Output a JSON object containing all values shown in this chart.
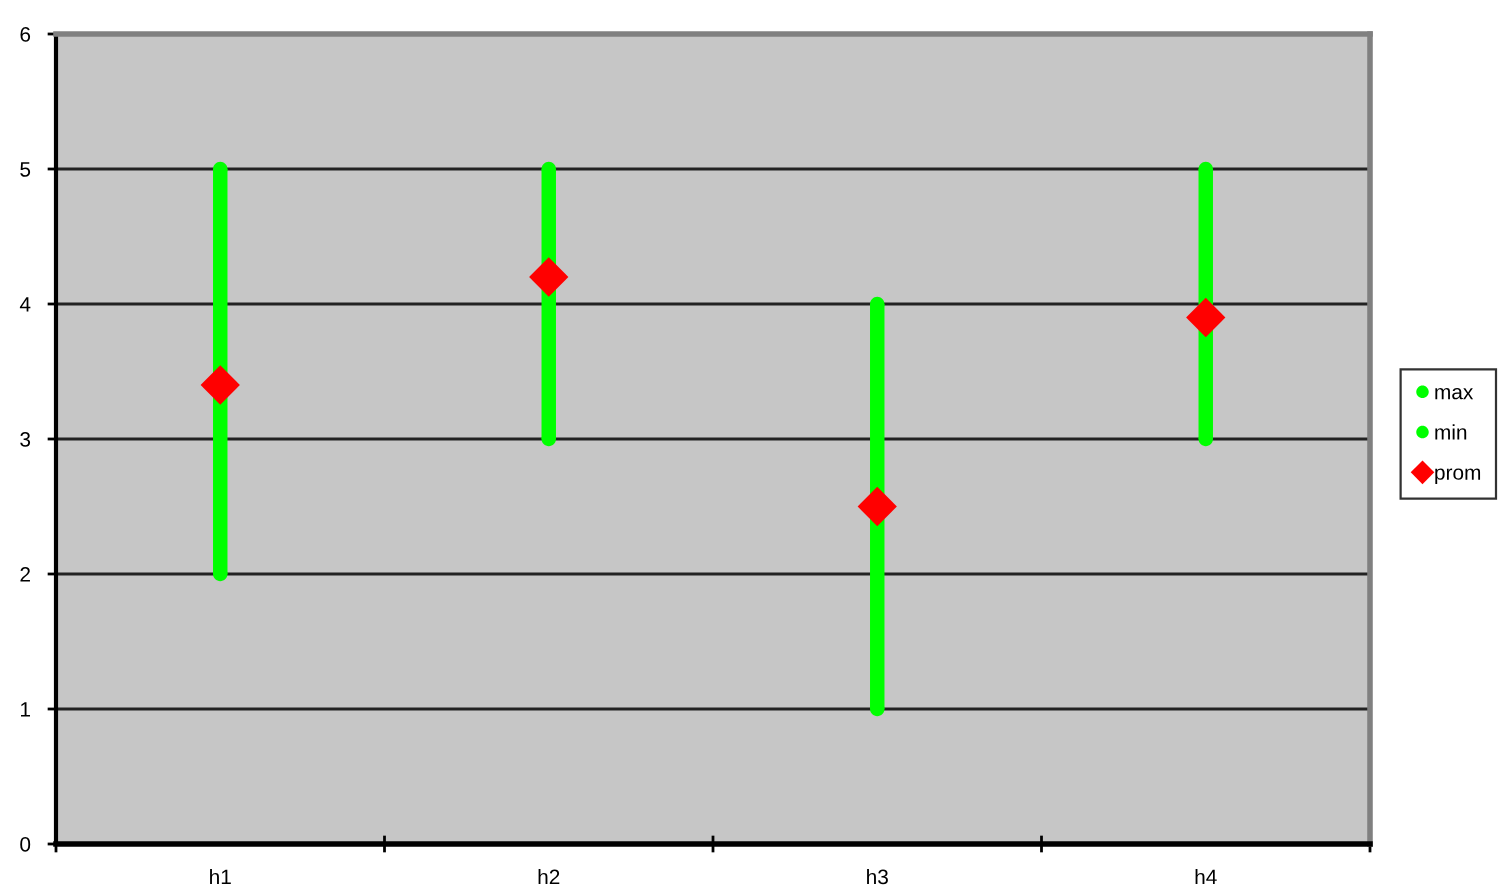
{
  "chart_data": {
    "type": "scatter",
    "categories": [
      "h1",
      "h2",
      "h3",
      "h4"
    ],
    "series": [
      {
        "type": "bar",
        "color": "#00ff00",
        "base": [
          2,
          3,
          1,
          3
        ],
        "values": [
          3,
          2,
          3,
          2
        ]
      },
      {
        "name": "max",
        "marker": "circle",
        "color": "#00ff00",
        "values": [
          5,
          5,
          4,
          5
        ]
      },
      {
        "name": "min",
        "marker": "circle",
        "color": "#00ff00",
        "values": [
          2,
          3,
          1,
          3
        ]
      },
      {
        "name": "prom",
        "marker": "diamond",
        "color": "#ff0000",
        "values": [
          3.4,
          4.2,
          2.5,
          3.9
        ]
      }
    ],
    "ylim": [
      0,
      6
    ],
    "yticks": [
      0,
      1,
      2,
      3,
      4,
      5,
      6
    ],
    "grid": "y",
    "legend": "right"
  }
}
